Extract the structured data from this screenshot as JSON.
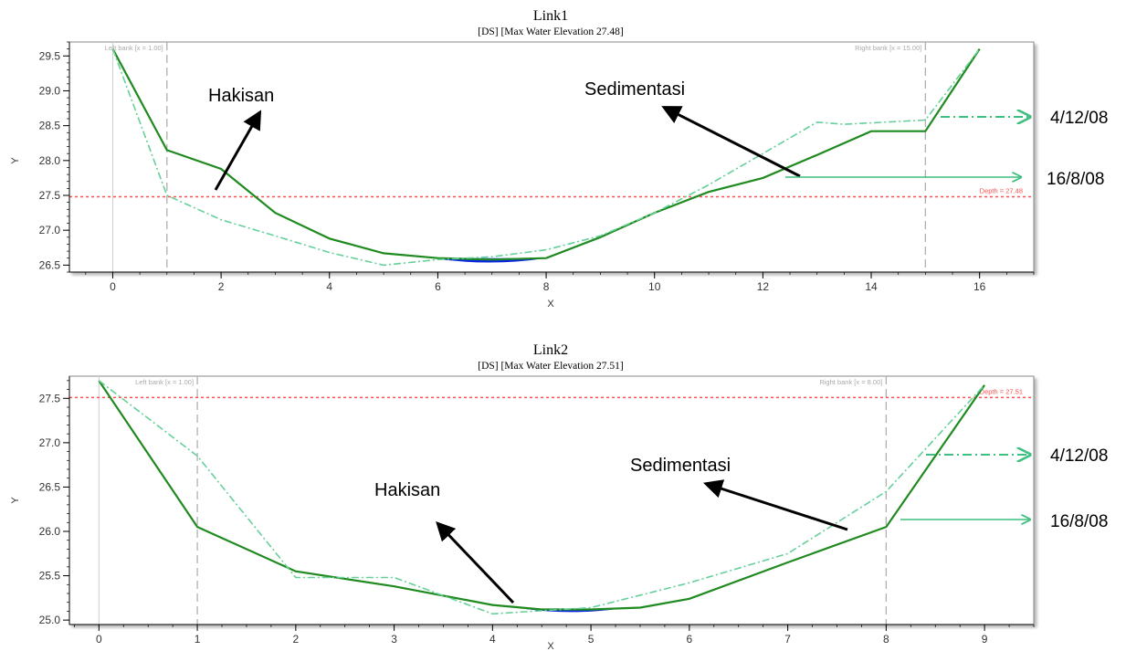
{
  "chart_data": [
    {
      "type": "line",
      "title": "Link1",
      "subtitle": "[DS] [Max Water Elevation 27.48]",
      "xlabel": "X",
      "ylabel": "Y",
      "xlim": [
        -0.8,
        17.0
      ],
      "ylim": [
        26.4,
        29.7
      ],
      "xticks": [
        0,
        2,
        4,
        6,
        8,
        10,
        12,
        14,
        16
      ],
      "yticks": [
        26.5,
        27.0,
        27.5,
        28.0,
        28.5,
        29.0,
        29.5
      ],
      "left_bank": {
        "x": 1,
        "label": "Left bank [x = 1.00]"
      },
      "right_bank": {
        "x": 15,
        "label": "Right bank [x = 15.00]"
      },
      "water_level": {
        "y": 27.48,
        "label": "Depth = 27.48"
      },
      "series": [
        {
          "name": "16/8/08",
          "x": [
            0,
            1,
            2,
            3,
            4,
            5,
            6,
            7,
            8,
            9,
            10,
            11,
            12,
            13,
            14,
            15,
            16
          ],
          "y": [
            29.6,
            28.15,
            27.88,
            27.25,
            26.88,
            26.67,
            26.6,
            26.58,
            26.6,
            26.9,
            27.25,
            27.55,
            27.75,
            28.08,
            28.42,
            28.42,
            29.6
          ]
        },
        {
          "name": "4/12/08",
          "x": [
            0,
            1,
            2,
            3,
            4,
            5,
            6,
            7,
            8,
            9,
            10,
            11,
            12,
            13,
            13.5,
            15,
            16
          ],
          "y": [
            29.6,
            27.5,
            27.15,
            26.92,
            26.68,
            26.5,
            26.58,
            26.62,
            26.72,
            26.92,
            27.25,
            27.65,
            28.1,
            28.55,
            28.52,
            28.58,
            29.6
          ]
        }
      ],
      "water_fill": {
        "from_x": 5.9,
        "to_x": 8.0,
        "bottom_y": 26.5,
        "top_y": 26.6
      },
      "annotations": [
        {
          "text": "Hakisan",
          "kind": "arrow-label"
        },
        {
          "text": "Sedimentasi",
          "kind": "arrow-label"
        }
      ]
    },
    {
      "type": "line",
      "title": "Link2",
      "subtitle": "[DS] [Max Water Elevation 27.51]",
      "xlabel": "X",
      "ylabel": "Y",
      "xlim": [
        -0.3,
        9.5
      ],
      "ylim": [
        24.95,
        27.75
      ],
      "xticks": [
        0,
        1,
        2,
        3,
        4,
        5,
        6,
        7,
        8,
        9
      ],
      "yticks": [
        25.0,
        25.5,
        26.0,
        26.5,
        27.0,
        27.5
      ],
      "left_bank": {
        "x": 1,
        "label": "Left bank [x = 1.00]"
      },
      "right_bank": {
        "x": 8,
        "label": "Right bank [x = 8.00]"
      },
      "water_level": {
        "y": 27.51,
        "label": "Depth = 27.51"
      },
      "series": [
        {
          "name": "16/8/08",
          "x": [
            0,
            1,
            2,
            3,
            4,
            4.5,
            5,
            5.5,
            6,
            7,
            8,
            9
          ],
          "y": [
            27.7,
            26.05,
            25.55,
            25.38,
            25.17,
            25.12,
            25.12,
            25.14,
            25.24,
            25.65,
            26.05,
            27.65
          ]
        },
        {
          "name": "4/12/08",
          "x": [
            0,
            1,
            2,
            3,
            4,
            5,
            6,
            7,
            8,
            9
          ],
          "y": [
            27.7,
            26.85,
            25.48,
            25.48,
            25.07,
            25.14,
            25.42,
            25.75,
            26.45,
            27.65
          ]
        }
      ],
      "water_fill": {
        "from_x": 4.3,
        "to_x": 5.3,
        "bottom_y": 25.07,
        "top_y": 25.13
      },
      "annotations": [
        {
          "text": "Hakisan",
          "kind": "arrow-label"
        },
        {
          "text": "Sedimentasi",
          "kind": "arrow-label"
        }
      ]
    }
  ],
  "legend_labels": {
    "dashed": "4/12/08",
    "solid": "16/8/08"
  },
  "colors": {
    "solid_series": "#1f8a1f",
    "dashed_series": "#66d09a",
    "water_level": "#ff5050",
    "water_fill": "#0a28e0",
    "bank_line": "#b0b0b0",
    "arrow": "#000000"
  }
}
